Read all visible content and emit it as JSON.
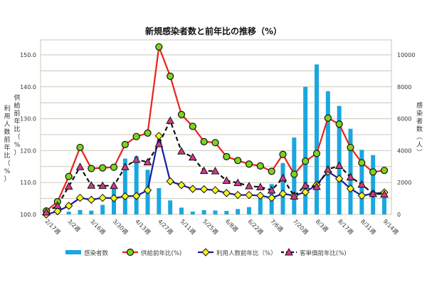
{
  "chart_data": {
    "type": "bar+line",
    "title": "新規感染者数と前年比の推移（%）",
    "ylabel_left": [
      "供給前年比（%）",
      "利用人数前年比（%）"
    ],
    "ylabel_right": "感染者数（人）",
    "ylim_left": [
      100,
      155
    ],
    "ylim_right": [
      0,
      11000
    ],
    "yticks_left": [
      "100.0",
      "110.0",
      "120.0",
      "130.0",
      "140.0",
      "150.0"
    ],
    "yticks_right": [
      "0",
      "2000",
      "4000",
      "6000",
      "8000",
      "10000"
    ],
    "grid": true,
    "legend_position": "bottom",
    "x_tick_labels": [
      "2/17週",
      "3/2週",
      "3/16週",
      "3/30週",
      "4/13週",
      "4/27週",
      "5/11週",
      "5/25週",
      "6/8週",
      "6/22週",
      "7/6週",
      "7/20週",
      "8/3週",
      "8/17週",
      "8/31週",
      "9/14週"
    ],
    "x_count": 31,
    "series": [
      {
        "name": "感染者数",
        "type": "bar",
        "axis": "right",
        "color": "#1aa7e0",
        "values": [
          0,
          0,
          180,
          280,
          240,
          600,
          1700,
          3500,
          3650,
          2800,
          1650,
          880,
          430,
          180,
          270,
          250,
          220,
          340,
          460,
          1200,
          1900,
          3220,
          4820,
          8000,
          9400,
          7720,
          6800,
          5370,
          4050,
          3720,
          1300
        ]
      },
      {
        "name": "供給前年比(%)",
        "type": "line",
        "axis": "left",
        "color": "#e8231c",
        "marker": "circle",
        "marker_color": "#7ed321",
        "values": [
          101.1,
          104.0,
          111.9,
          121.0,
          114.4,
          114.6,
          114.8,
          121.9,
          124.4,
          125.5,
          152.5,
          143.3,
          131.3,
          127.6,
          122.8,
          122.5,
          118.1,
          116.9,
          115.8,
          115.2,
          113.5,
          118.8,
          112.6,
          116.7,
          119.1,
          130.2,
          128.3,
          121.0,
          116.2,
          113.3,
          113.8
        ]
      },
      {
        "name": "利用人数前年比（%）",
        "type": "line",
        "axis": "left",
        "color": "#1a1aa8",
        "marker": "diamond",
        "marker_color": "#f5f51e",
        "values": [
          100.0,
          101.0,
          102.7,
          105.2,
          104.6,
          105.2,
          105.1,
          105.7,
          105.8,
          107.6,
          124.6,
          110.4,
          109.2,
          108.0,
          107.9,
          107.6,
          106.7,
          106.1,
          106.1,
          105.9,
          105.2,
          106.5,
          105.9,
          107.0,
          109.3,
          113.4,
          111.2,
          108.1,
          105.9,
          106.5,
          106.9
        ]
      },
      {
        "name": "客単価前年比(%)",
        "type": "line",
        "axis": "left",
        "color": "#111111",
        "dash": true,
        "marker": "triangle",
        "marker_color": "#d4388a",
        "values": [
          100.7,
          102.8,
          108.8,
          114.9,
          109.1,
          109.0,
          109.0,
          114.9,
          117.2,
          116.4,
          122.1,
          129.4,
          119.8,
          117.9,
          113.7,
          113.6,
          110.6,
          109.9,
          108.9,
          108.6,
          107.6,
          111.4,
          105.7,
          109.1,
          108.7,
          114.1,
          115.3,
          111.7,
          109.4,
          106.5,
          106.3
        ]
      }
    ]
  }
}
